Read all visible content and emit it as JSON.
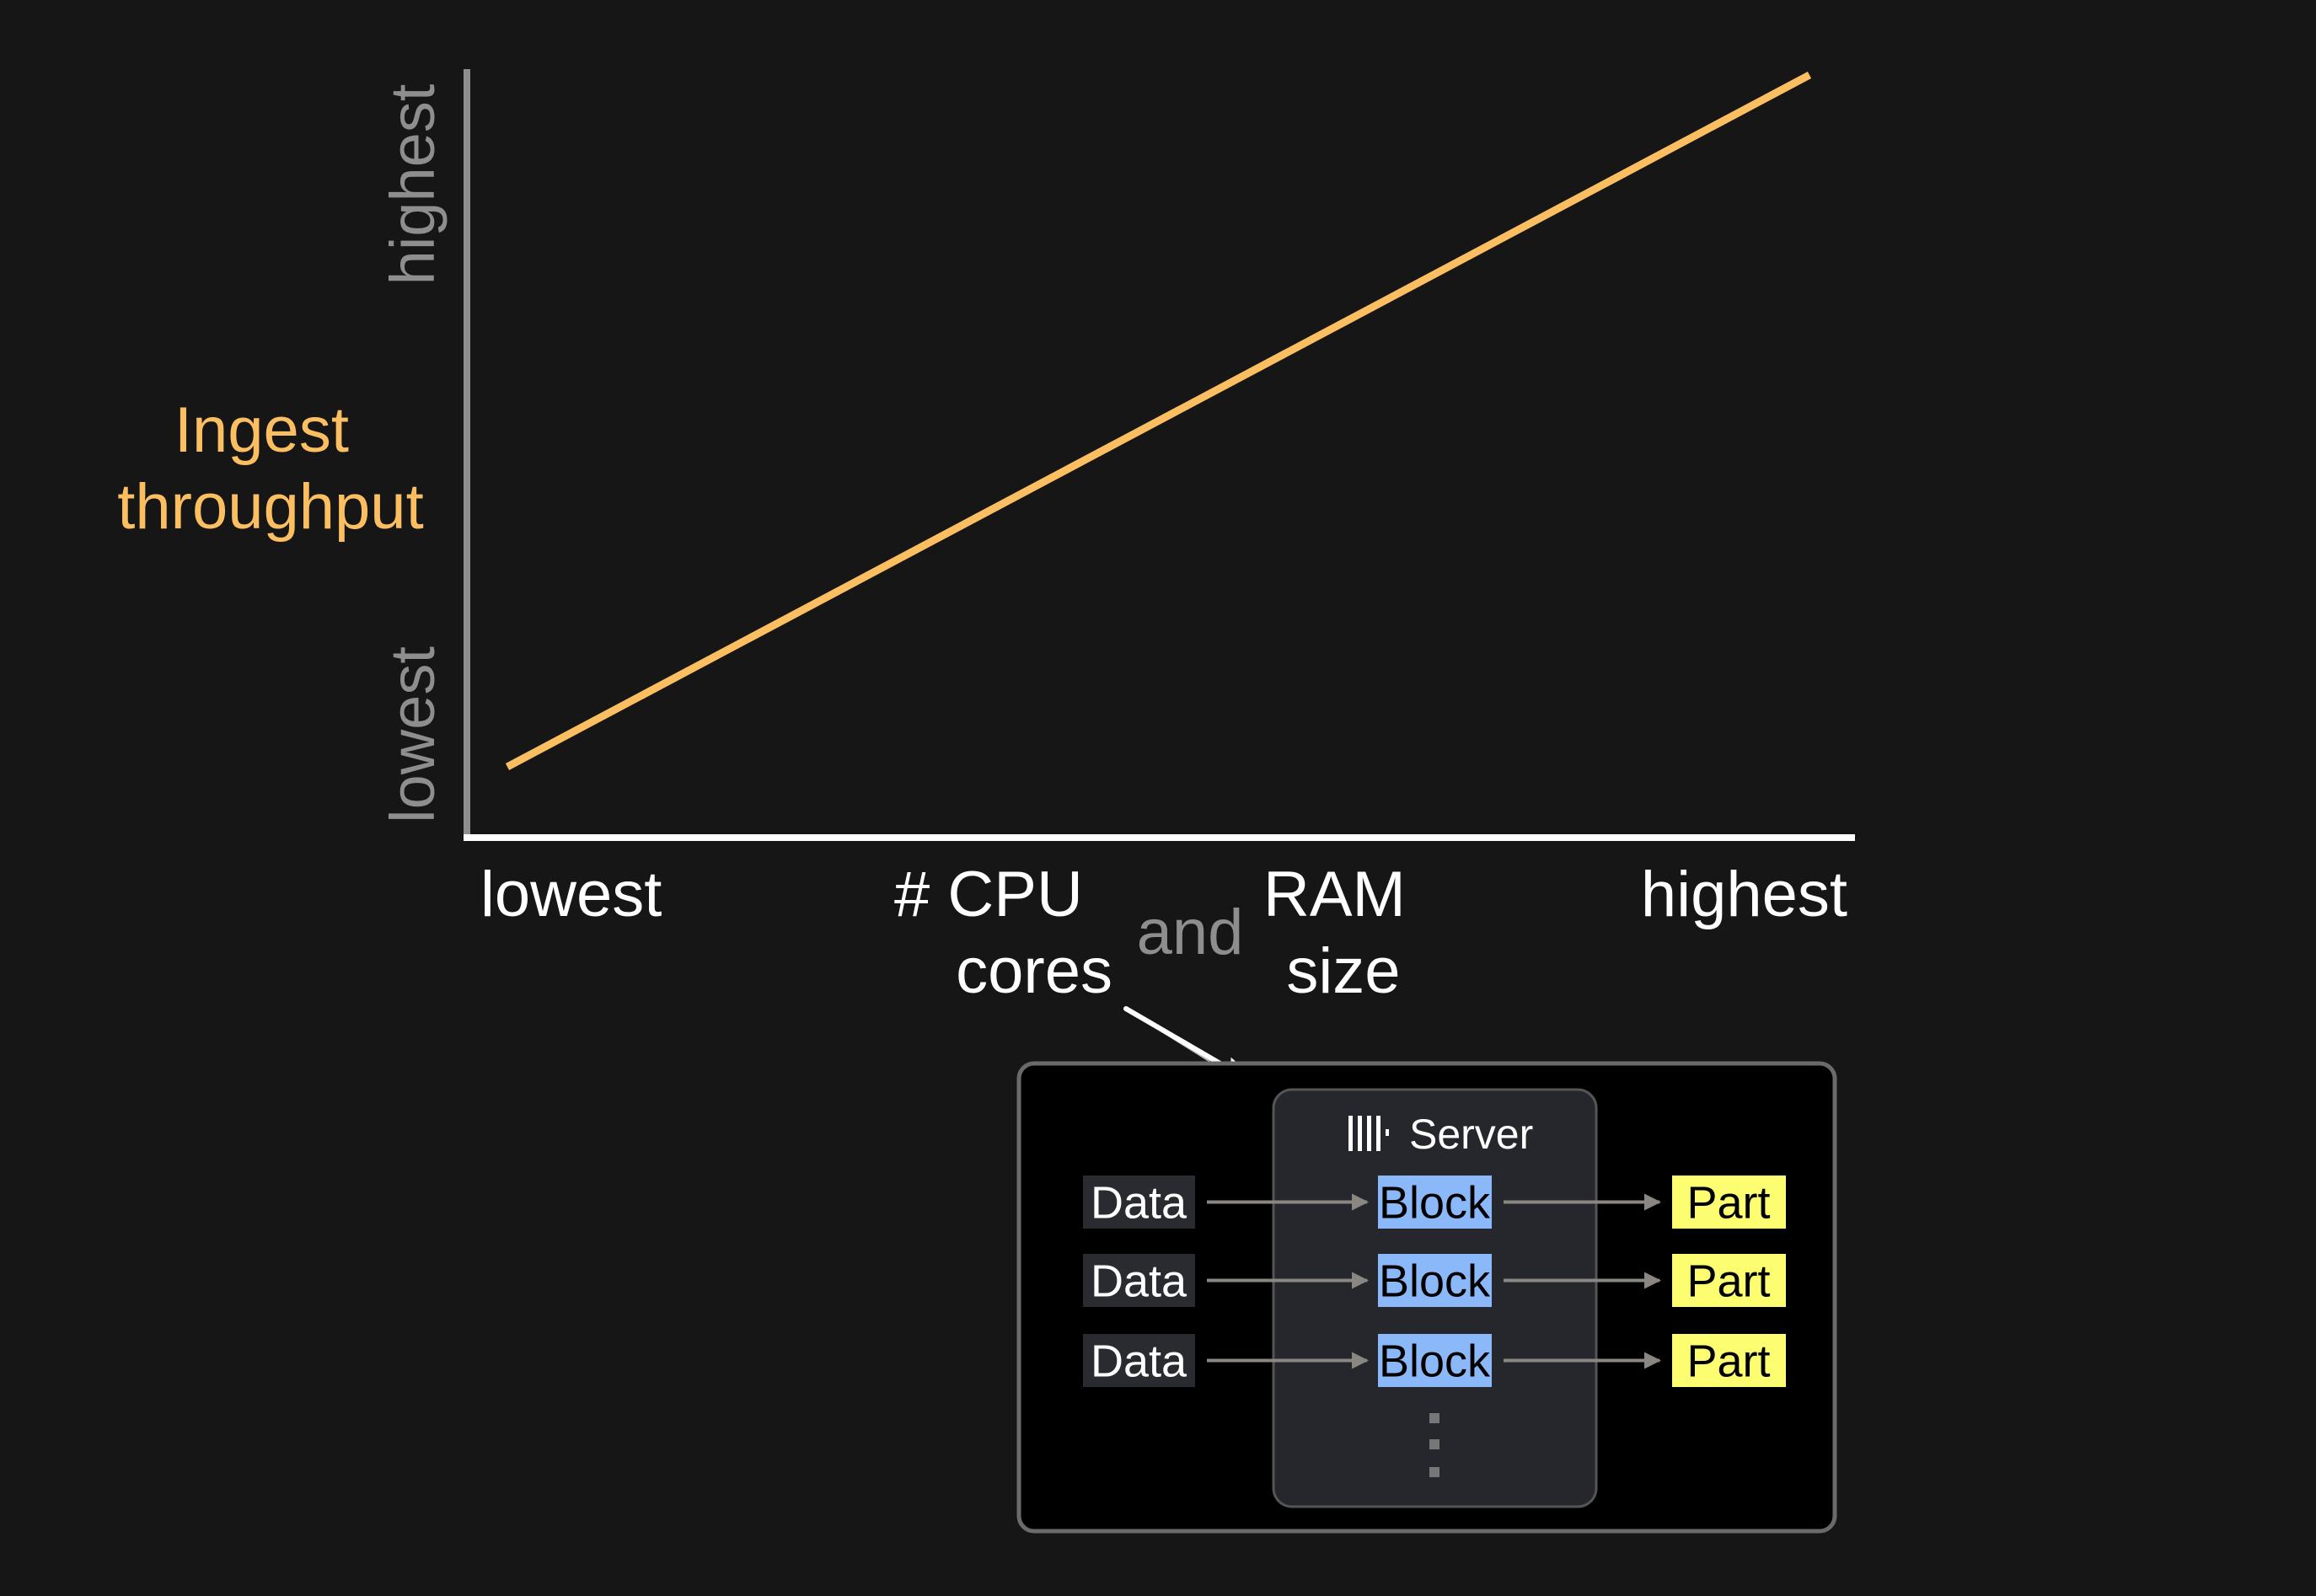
{
  "chart_data": {
    "type": "line",
    "ylabel": "Ingest throughput",
    "xlabel_parts": [
      "# CPU cores",
      "and",
      "RAM size"
    ],
    "x_ticks": [
      "lowest",
      "highest"
    ],
    "y_ticks": [
      "lowest",
      "highest"
    ],
    "series": [
      {
        "x": [
          "lowest",
          "highest"
        ],
        "y": [
          "lowest",
          "highest"
        ]
      }
    ],
    "grid": false,
    "colors": {
      "line": "#fbbf62",
      "ylabel": "#fbbf62",
      "axis_y": "#8e8e8e",
      "axis_x": "#ffffff"
    }
  },
  "labels": {
    "y_highest": "highest",
    "y_lowest": "lowest",
    "ylabel_line1": "Ingest",
    "ylabel_line2": "throughput",
    "x_lowest": "lowest",
    "x_highest": "highest",
    "cpu_line1": "# CPU",
    "cpu_line2": "cores",
    "and": "and",
    "ram_line1": "RAM",
    "ram_line2": "size"
  },
  "diagram": {
    "server_label": "Server",
    "server_icon": "columns-logo-icon",
    "rows": [
      {
        "input": "Data",
        "block": "Block",
        "part": "Part"
      },
      {
        "input": "Data",
        "block": "Block",
        "part": "Part"
      },
      {
        "input": "Data",
        "block": "Block",
        "part": "Part"
      }
    ],
    "colors": {
      "block": "#8ab8f8",
      "part": "#fdfd72",
      "data": "#2a2b30",
      "server": "#26272c"
    }
  }
}
